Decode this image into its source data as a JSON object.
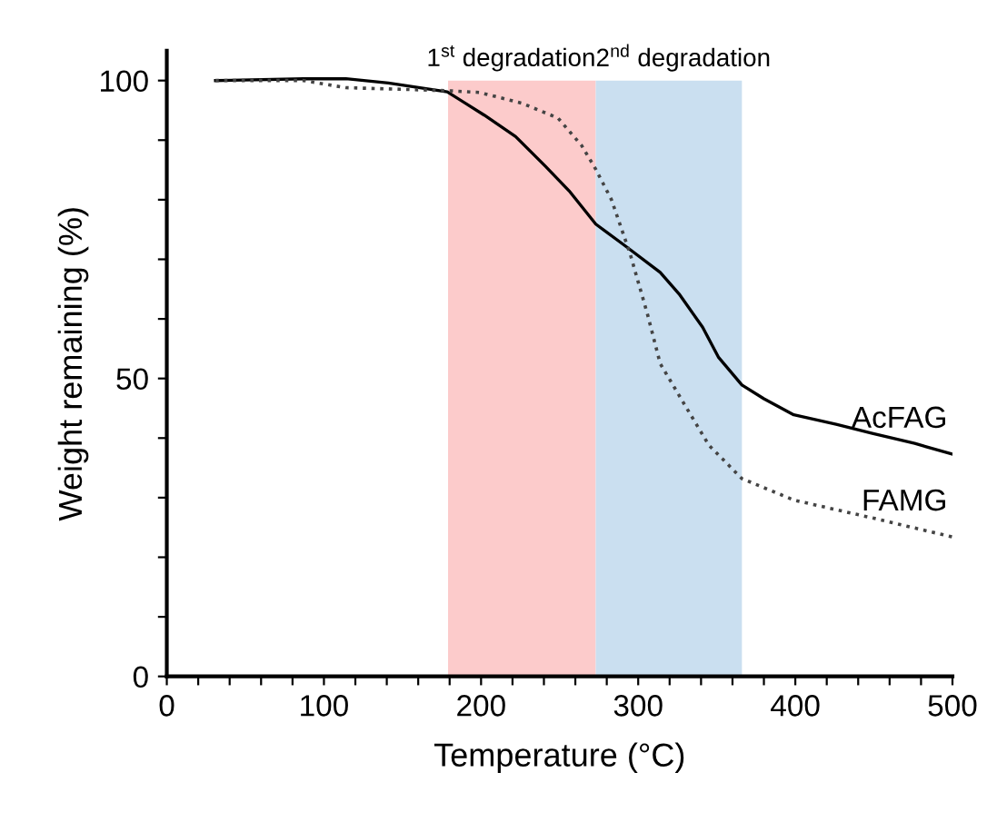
{
  "chart_data": {
    "type": "line",
    "xlabel": "Temperature (°C)",
    "ylabel": "Weight remaining (%)",
    "xlim": [
      0,
      500
    ],
    "ylim": [
      0,
      105
    ],
    "xticks": [
      0,
      {
        "value": 20,
        "label": null
      },
      {
        "value": 40,
        "label": null
      },
      {
        "value": 60,
        "label": null
      },
      {
        "value": 80,
        "label": null
      },
      100,
      {
        "value": 120,
        "label": null
      },
      {
        "value": 140,
        "label": null
      },
      {
        "value": 160,
        "label": null
      },
      {
        "value": 180,
        "label": null
      },
      200,
      {
        "value": 220,
        "label": null
      },
      {
        "value": 240,
        "label": null
      },
      {
        "value": 260,
        "label": null
      },
      {
        "value": 280,
        "label": null
      },
      300,
      {
        "value": 320,
        "label": null
      },
      {
        "value": 340,
        "label": null
      },
      {
        "value": 360,
        "label": null
      },
      {
        "value": 380,
        "label": null
      },
      400,
      {
        "value": 420,
        "label": null
      },
      {
        "value": 440,
        "label": null
      },
      {
        "value": 460,
        "label": null
      },
      {
        "value": 480,
        "label": null
      },
      500
    ],
    "yticks": [
      0,
      {
        "value": 10,
        "label": null
      },
      {
        "value": 20,
        "label": null
      },
      {
        "value": 30,
        "label": null
      },
      {
        "value": 40,
        "label": null
      },
      50,
      {
        "value": 60,
        "label": null
      },
      {
        "value": 70,
        "label": null
      },
      {
        "value": 80,
        "label": null
      },
      {
        "value": 90,
        "label": null
      },
      100
    ],
    "grid": false,
    "legend": false,
    "marker": "none",
    "series": [
      {
        "name": "AcFAG",
        "color": "#000000",
        "line_style": "solid",
        "x": [
          31,
          87,
          114,
          141,
          178.5,
          202,
          222,
          241,
          256,
          273,
          291,
          314,
          326,
          341,
          351,
          366,
          380,
          399,
          426,
          449,
          476,
          500
        ],
        "values": [
          100,
          100.3,
          100.3,
          99.6,
          98.1,
          94.2,
          90.6,
          85.6,
          81.5,
          75.9,
          72.4,
          67.8,
          64.2,
          58.6,
          53.6,
          48.9,
          46.6,
          43.9,
          42.3,
          40.8,
          39.1,
          37.3
        ]
      },
      {
        "name": "FAMG",
        "color": "#444444",
        "line_style": "dotted",
        "x": [
          31,
          87,
          114,
          141,
          178.5,
          199,
          226,
          249,
          264,
          273,
          283,
          295,
          306,
          314,
          330,
          345,
          366,
          399,
          449,
          500
        ],
        "values": [
          100,
          100,
          98.8,
          98.6,
          98.3,
          98.0,
          96.2,
          93.7,
          89.1,
          85.1,
          80,
          70.8,
          60.7,
          52.5,
          45.4,
          38.8,
          33.2,
          29.6,
          26.6,
          23.4
        ]
      }
    ],
    "bands": [
      {
        "axis": "x",
        "from": 179,
        "to": 273,
        "label": "1$^{st}$ degradation",
        "color": "#fccbcb"
      },
      {
        "axis": "x",
        "from": 273,
        "to": 366,
        "label": "2$^{nd}$ degradation",
        "color": "#cadff0"
      }
    ]
  }
}
